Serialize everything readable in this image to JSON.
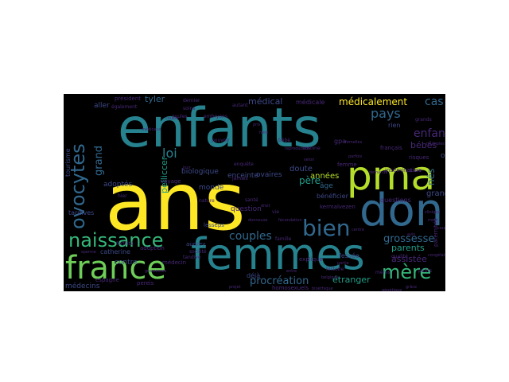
{
  "palette": {
    "yellow": "#fde725",
    "lime": "#b5de2b",
    "green": "#6ece58",
    "mint": "#35b779",
    "teal": "#1f9e89",
    "cyan": "#26828e",
    "steel": "#31688e",
    "indigo": "#3e4989",
    "purple": "#482878",
    "deep": "#440154"
  },
  "words": [
    {
      "text": "ans",
      "color": "yellow"
    },
    {
      "text": "enfants",
      "color": "cyan"
    },
    {
      "text": "femmes",
      "color": "cyan"
    },
    {
      "text": "don",
      "color": "steel"
    },
    {
      "text": "pma",
      "color": "lime"
    },
    {
      "text": "france",
      "color": "green"
    },
    {
      "text": "naissance",
      "color": "mint"
    },
    {
      "text": "ovocytes",
      "color": "steel"
    },
    {
      "text": "bien",
      "color": "steel"
    },
    {
      "text": "mère",
      "color": "mint"
    },
    {
      "text": "enfant",
      "color": "purple"
    },
    {
      "text": "pays",
      "color": "steel"
    },
    {
      "text": "loi",
      "color": "cyan"
    },
    {
      "text": "grossesse",
      "color": "steel"
    },
    {
      "text": "couples",
      "color": "steel"
    },
    {
      "text": "procréation",
      "color": "steel"
    },
    {
      "text": "médicalement",
      "color": "yellow"
    },
    {
      "text": "cas",
      "color": "steel"
    },
    {
      "text": "grand",
      "color": "steel"
    },
    {
      "text": "père",
      "color": "teal"
    },
    {
      "text": "parents",
      "color": "teal"
    },
    {
      "text": "assistée",
      "color": "purple"
    },
    {
      "text": "étranger",
      "color": "teal"
    },
    {
      "text": "tyler",
      "color": "steel"
    },
    {
      "text": "médical",
      "color": "indigo"
    },
    {
      "text": "années",
      "color": "lime"
    },
    {
      "text": "pelliccer",
      "color": "teal"
    },
    {
      "text": "bébés",
      "color": "purple"
    },
    {
      "text": "nés",
      "color": "steel"
    },
    {
      "text": "grande",
      "color": "indigo"
    },
    {
      "text": "ogo",
      "color": "indigo"
    },
    {
      "text": "médecins",
      "color": "indigo"
    },
    {
      "text": "adoptés",
      "color": "indigo"
    },
    {
      "text": "catherine",
      "color": "indigo"
    },
    {
      "text": "contre",
      "color": "indigo"
    },
    {
      "text": "âge",
      "color": "steel"
    },
    {
      "text": "doute",
      "color": "indigo"
    },
    {
      "text": "ovaires",
      "color": "indigo"
    },
    {
      "text": "enceinte",
      "color": "indigo"
    },
    {
      "text": "monde",
      "color": "indigo"
    },
    {
      "text": "biologique",
      "color": "indigo"
    },
    {
      "text": "bénéficier",
      "color": "indigo"
    },
    {
      "text": "questions",
      "color": "purple"
    },
    {
      "text": "question",
      "color": "purple"
    },
    {
      "text": "aller",
      "color": "indigo"
    },
    {
      "text": "déjà",
      "color": "indigo"
    },
    {
      "text": "rien",
      "color": "indigo"
    },
    {
      "text": "médicale",
      "color": "purple"
    },
    {
      "text": "gpa",
      "color": "purple"
    },
    {
      "text": "tardives",
      "color": "indigo"
    },
    {
      "text": "tourisme",
      "color": "indigo"
    },
    {
      "text": "fessée",
      "color": "indigo"
    },
    {
      "text": "français",
      "color": "purple"
    },
    {
      "text": "homosexuels",
      "color": "purple"
    },
    {
      "text": "président",
      "color": "purple"
    },
    {
      "text": "adoption",
      "color": "purple"
    },
    {
      "text": "explique",
      "color": "purple"
    },
    {
      "text": "paternités",
      "color": "purple"
    },
    {
      "text": "médecin",
      "color": "purple"
    },
    {
      "text": "espagne",
      "color": "purple"
    },
    {
      "text": "pereis",
      "color": "purple"
    },
    {
      "text": "kermalvezen",
      "color": "purple"
    },
    {
      "text": "insémination",
      "color": "purple"
    },
    {
      "text": "femme",
      "color": "purple"
    },
    {
      "text": "risques",
      "color": "purple"
    },
    {
      "text": "audrey",
      "color": "indigo"
    },
    {
      "text": "voyage",
      "color": "purple"
    },
    {
      "text": "lesseps",
      "color": "indigo"
    },
    {
      "text": "également",
      "color": "purple"
    },
    {
      "text": "embryons",
      "color": "purple"
    },
    {
      "text": "mères",
      "color": "purple"
    },
    {
      "text": "hier",
      "color": "purple"
    },
    {
      "text": "nature",
      "color": "purple"
    },
    {
      "text": "santé",
      "color": "purple"
    },
    {
      "text": "société",
      "color": "purple"
    },
    {
      "text": "ovules",
      "color": "purple"
    },
    {
      "text": "grands",
      "color": "purple"
    },
    {
      "text": "petits",
      "color": "purple"
    },
    {
      "text": "histoire",
      "color": "purple"
    },
    {
      "text": "famille",
      "color": "purple"
    },
    {
      "text": "qualité",
      "color": "purple"
    },
    {
      "text": "enquête",
      "color": "purple"
    },
    {
      "text": "fertilité",
      "color": "purple"
    },
    {
      "text": "dernier",
      "color": "purple"
    },
    {
      "text": "soins",
      "color": "purple"
    },
    {
      "text": "autant",
      "color": "purple"
    },
    {
      "text": "tandive",
      "color": "purple"
    },
    {
      "text": "jamais",
      "color": "purple"
    },
    {
      "text": "pouvoir",
      "color": "purple"
    },
    {
      "text": "antoine",
      "color": "purple"
    },
    {
      "text": "bébé",
      "color": "purple"
    },
    {
      "text": "vie",
      "color": "purple"
    },
    {
      "text": "donneuse",
      "color": "purple"
    },
    {
      "text": "fécondation",
      "color": "purple"
    },
    {
      "text": "parfois",
      "color": "purple"
    },
    {
      "text": "centre",
      "color": "purple"
    },
    {
      "text": "reproduction",
      "color": "purple"
    },
    {
      "text": "droit",
      "color": "purple"
    },
    {
      "text": "couple",
      "color": "purple"
    },
    {
      "text": "femelles",
      "color": "purple"
    },
    {
      "text": "pris",
      "color": "purple"
    },
    {
      "text": "faire",
      "color": "purple"
    },
    {
      "text": "clinique",
      "color": "purple"
    },
    {
      "text": "mois",
      "color": "purple"
    },
    {
      "text": "jour",
      "color": "purple"
    },
    {
      "text": "cours",
      "color": "purple"
    },
    {
      "text": "grâce",
      "color": "purple"
    },
    {
      "text": "sperme",
      "color": "purple"
    },
    {
      "text": "congélation",
      "color": "purple"
    },
    {
      "text": "entre",
      "color": "purple"
    },
    {
      "text": "belgique",
      "color": "purple"
    },
    {
      "text": "bioéthique",
      "color": "purple"
    },
    {
      "text": "multiples",
      "color": "purple"
    },
    {
      "text": "quand",
      "color": "purple"
    },
    {
      "text": "selon",
      "color": "purple"
    },
    {
      "text": "demande",
      "color": "purple"
    },
    {
      "text": "projet",
      "color": "purple"
    },
    {
      "text": "génétique",
      "color": "purple"
    },
    {
      "text": "grossesses",
      "color": "purple"
    },
    {
      "text": "médicaux",
      "color": "purple"
    },
    {
      "text": "avis",
      "color": "purple"
    },
    {
      "text": "partie",
      "color": "purple"
    }
  ]
}
